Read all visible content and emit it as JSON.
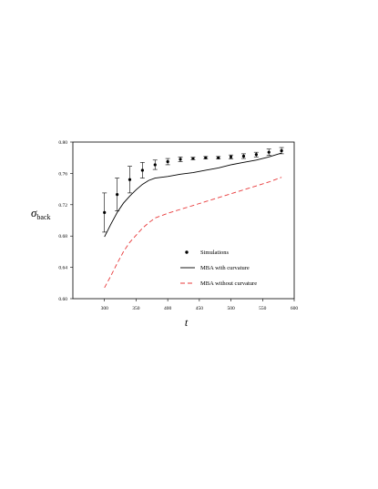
{
  "chart_data": {
    "type": "line",
    "title": "",
    "xlabel": "t",
    "ylabel": {
      "main": "σ",
      "sub": "back"
    },
    "xlim": [
      250,
      600
    ],
    "ylim": [
      0.6,
      0.8
    ],
    "xticks": [
      300,
      350,
      400,
      450,
      500,
      550,
      600
    ],
    "yticks": [
      0.6,
      0.64,
      0.68,
      0.72,
      0.76,
      0.8
    ],
    "xtick_labels": [
      "300",
      "350",
      "400",
      "450",
      "500",
      "550",
      "600"
    ],
    "ytick_labels": [
      "0.60",
      "0.64",
      "0.68",
      "0.72",
      "0.76",
      "0.80"
    ],
    "grid": false,
    "legend_position": "bottom-right",
    "series": [
      {
        "name": "Simulations",
        "kind": "scatter-errorbar",
        "color": "#000000",
        "x": [
          300,
          320,
          340,
          360,
          380,
          400,
          420,
          440,
          460,
          480,
          500,
          520,
          540,
          560,
          580
        ],
        "y": [
          0.71,
          0.733,
          0.752,
          0.764,
          0.771,
          0.775,
          0.778,
          0.779,
          0.78,
          0.78,
          0.781,
          0.782,
          0.784,
          0.787,
          0.789
        ],
        "err": [
          0.025,
          0.021,
          0.017,
          0.01,
          0.006,
          0.004,
          0.003,
          0.0015,
          0.0015,
          0.0015,
          0.0025,
          0.003,
          0.003,
          0.004,
          0.004
        ]
      },
      {
        "name": "MBA with curvature",
        "kind": "line",
        "color": "#000000",
        "dash": "solid",
        "x": [
          300,
          310,
          320,
          330,
          340,
          350,
          360,
          370,
          380,
          400,
          420,
          440,
          460,
          480,
          500,
          520,
          540,
          560,
          580
        ],
        "y": [
          0.679,
          0.695,
          0.71,
          0.722,
          0.731,
          0.739,
          0.746,
          0.751,
          0.754,
          0.756,
          0.759,
          0.761,
          0.764,
          0.767,
          0.771,
          0.774,
          0.777,
          0.781,
          0.786
        ]
      },
      {
        "name": "MBA without curvature",
        "kind": "line",
        "color": "#e8393a",
        "dash": "dashed",
        "x": [
          300,
          310,
          320,
          330,
          340,
          350,
          360,
          370,
          380,
          400,
          420,
          440,
          460,
          480,
          500,
          520,
          540,
          560,
          580
        ],
        "y": [
          0.614,
          0.629,
          0.645,
          0.66,
          0.672,
          0.681,
          0.69,
          0.697,
          0.703,
          0.709,
          0.714,
          0.719,
          0.724,
          0.729,
          0.734,
          0.739,
          0.744,
          0.749,
          0.755
        ]
      }
    ]
  }
}
